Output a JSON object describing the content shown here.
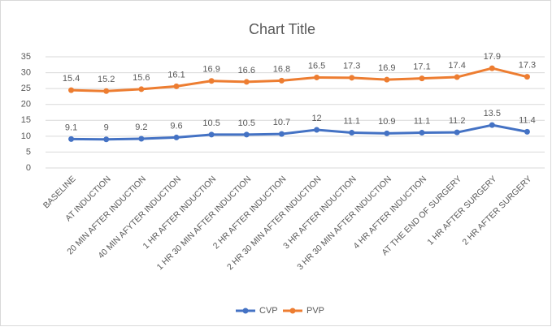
{
  "chart_data": {
    "type": "line",
    "title": "Chart Title",
    "stacked": true,
    "grid": true,
    "legend": "bottom",
    "categories": [
      "BASELINE",
      "AT INDUCTION",
      "20 MIN AFTER INDUCTION",
      "40 MIN AFYTER INDUCTION",
      "1 HR AFTER INDUCTION",
      "1 HR 30 MIN AFTER INDUCTION",
      "2 HR AFTER INDUCTION",
      "2 HR 30 MIN AFTER INDUCTION",
      "3 HR AFTER INDUCTION",
      "3 HR 30 MIN AFTER INDUCTION",
      "4 HR AFTER INDUCTION",
      "AT THE END OF SURGERY",
      "1 HR AFTER SURGERY",
      "2 HR AFTER SURGERY"
    ],
    "series": [
      {
        "name": "CVP",
        "color": "#4472c4",
        "values": [
          9.1,
          9,
          9.2,
          9.6,
          10.5,
          10.5,
          10.7,
          12,
          11.1,
          10.9,
          11.1,
          11.2,
          13.5,
          11.4
        ]
      },
      {
        "name": "PVP",
        "color": "#ed7d31",
        "values": [
          15.4,
          15.2,
          15.6,
          16.1,
          16.9,
          16.6,
          16.8,
          16.5,
          17.3,
          16.9,
          17.1,
          17.4,
          17.9,
          17.3
        ]
      }
    ],
    "ylim": [
      0,
      35
    ],
    "yticks": [
      0,
      5,
      10,
      15,
      20,
      25,
      30,
      35
    ]
  }
}
